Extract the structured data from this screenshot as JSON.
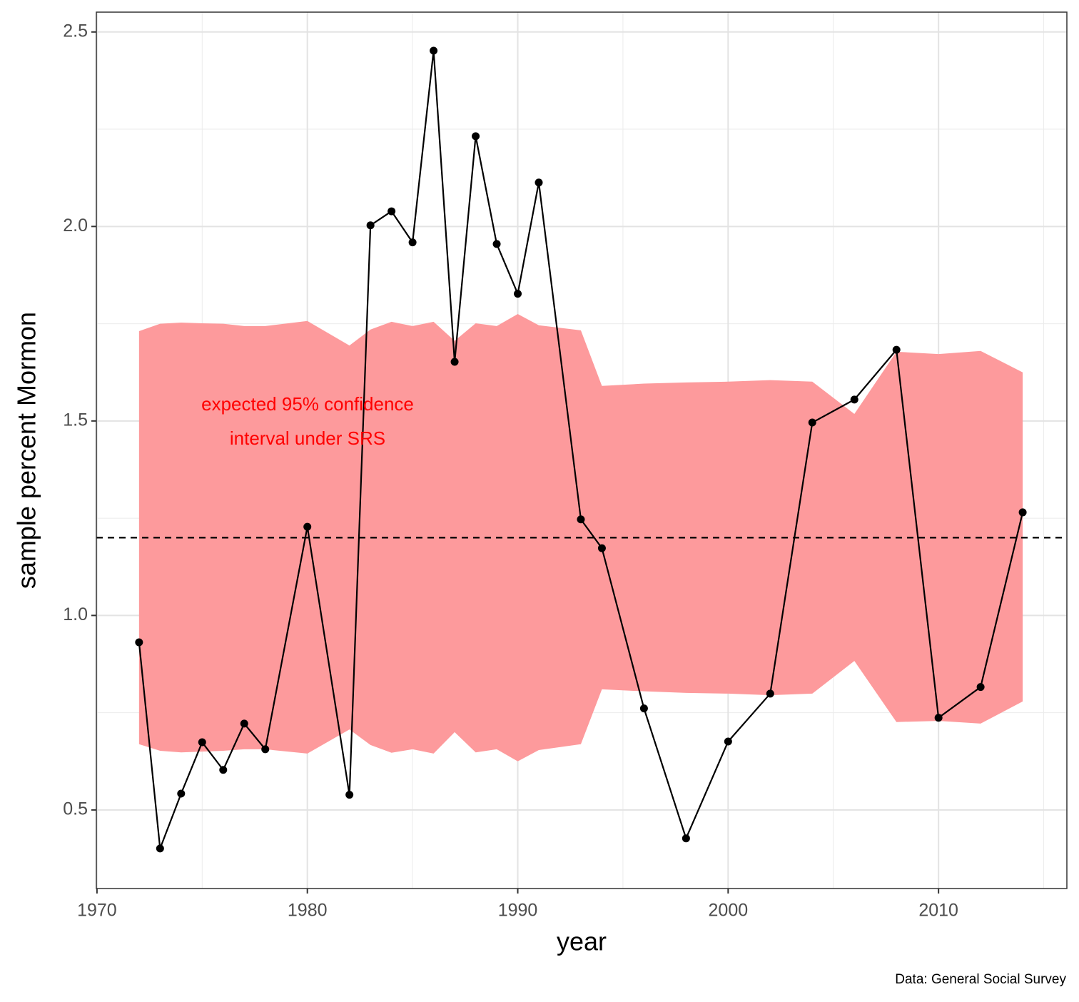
{
  "chart_data": {
    "type": "line",
    "x_label": "year",
    "y_label": "sample percent Mormon",
    "caption": "Data: General Social Survey",
    "annotation": [
      "expected 95% confidence",
      "interval under SRS"
    ],
    "annotation_color": "#ff0000",
    "x": [
      1972,
      1973,
      1974,
      1975,
      1976,
      1977,
      1978,
      1980,
      1982,
      1983,
      1984,
      1985,
      1986,
      1987,
      1988,
      1989,
      1990,
      1991,
      1993,
      1994,
      1996,
      1998,
      2000,
      2002,
      2004,
      2006,
      2008,
      2010,
      2012,
      2014
    ],
    "values": [
      0.931,
      0.401,
      0.542,
      0.674,
      0.603,
      0.722,
      0.656,
      1.228,
      0.539,
      2.003,
      2.039,
      1.959,
      2.452,
      1.652,
      2.232,
      1.955,
      1.827,
      2.113,
      1.247,
      1.173,
      0.761,
      0.427,
      0.676,
      0.799,
      1.496,
      1.555,
      1.683,
      0.737,
      0.816,
      1.265
    ],
    "color": "#000000",
    "ribbon": {
      "color": "#fd9a9c",
      "upper": [
        1.731,
        1.75,
        1.753,
        1.751,
        1.75,
        1.744,
        1.744,
        1.757,
        1.694,
        1.735,
        1.755,
        1.744,
        1.755,
        1.706,
        1.751,
        1.744,
        1.775,
        1.746,
        1.733,
        1.59,
        1.596,
        1.599,
        1.601,
        1.605,
        1.601,
        1.518,
        1.678,
        1.672,
        1.68,
        1.625
      ],
      "lower": [
        0.669,
        0.652,
        0.648,
        0.65,
        0.652,
        0.656,
        0.656,
        0.645,
        0.707,
        0.667,
        0.647,
        0.656,
        0.645,
        0.7,
        0.648,
        0.656,
        0.625,
        0.654,
        0.669,
        0.81,
        0.805,
        0.801,
        0.799,
        0.795,
        0.799,
        0.883,
        0.726,
        0.729,
        0.722,
        0.779
      ]
    },
    "reference_line": 1.2,
    "xlim": [
      1969.97,
      2016.1
    ],
    "xticks": [
      1970,
      1980,
      1990,
      2000,
      2010
    ],
    "ylim": [
      0.298,
      2.551
    ],
    "yticks": [
      {
        "value": 0.5,
        "label": "0.5"
      },
      {
        "value": 1.0,
        "label": "1.0"
      },
      {
        "value": 1.5,
        "label": "1.5"
      },
      {
        "value": 2.0,
        "label": "2.0"
      },
      {
        "value": 2.5,
        "label": "2.5"
      }
    ],
    "grid": true,
    "minor_grid": true
  }
}
